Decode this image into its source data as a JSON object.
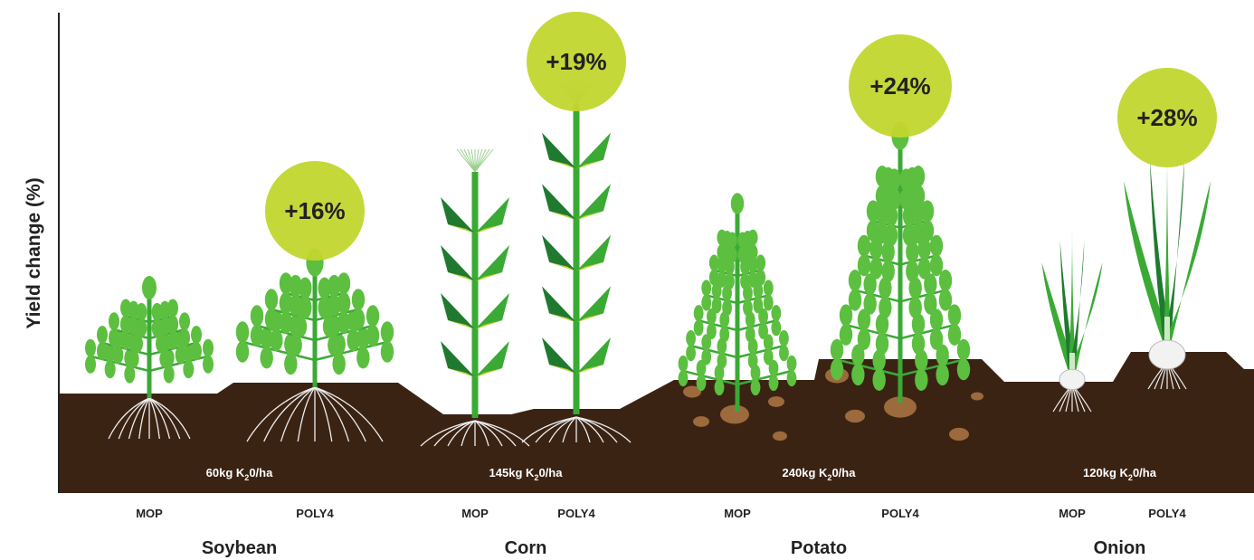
{
  "y_axis_label": "Yield change (%)",
  "crops": [
    {
      "name": "Soybean",
      "rate": {
        "prefix": "60kg K",
        "sub": "2",
        "suffix": "0/ha"
      },
      "treatments": [
        "MOP",
        "POLY4"
      ],
      "yield_change": "+16%"
    },
    {
      "name": "Corn",
      "rate": {
        "prefix": "145kg K",
        "sub": "2",
        "suffix": "0/ha"
      },
      "treatments": [
        "MOP",
        "POLY4"
      ],
      "yield_change": "+19%"
    },
    {
      "name": "Potato",
      "rate": {
        "prefix": "240kg K",
        "sub": "2",
        "suffix": "0/ha"
      },
      "treatments": [
        "MOP",
        "POLY4"
      ],
      "yield_change": "+24%"
    },
    {
      "name": "Onion",
      "rate": {
        "prefix": "120kg K",
        "sub": "2",
        "suffix": "0/ha"
      },
      "treatments": [
        "MOP",
        "POLY4"
      ],
      "yield_change": "+28%"
    }
  ]
}
